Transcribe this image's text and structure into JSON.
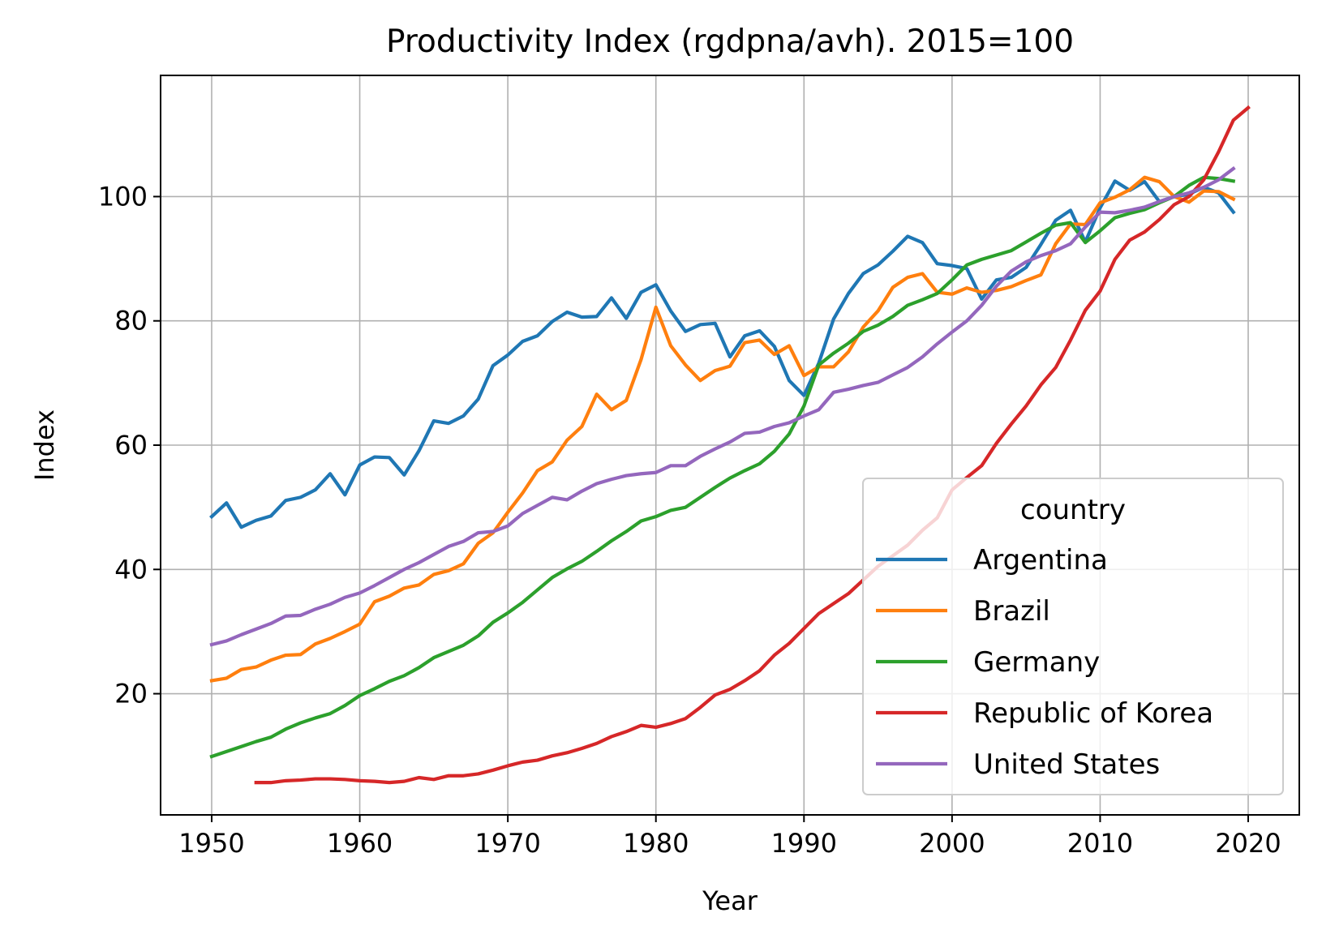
{
  "chart_data": {
    "type": "line",
    "title": "Productivity Index (rgdpna/avh). 2015=100",
    "xlabel": "Year",
    "ylabel": "Index",
    "xlim": [
      1946.55,
      2023.45
    ],
    "ylim": [
      0.5,
      119.5
    ],
    "xticks": [
      "1950",
      "1960",
      "1970",
      "1980",
      "1990",
      "2000",
      "2010",
      "2020"
    ],
    "yticks": [
      "20",
      "40",
      "60",
      "80",
      "100"
    ],
    "grid": true,
    "legend": {
      "title": "country",
      "position": "lower-right",
      "entries": [
        "Argentina",
        "Brazil",
        "Germany",
        "Republic of Korea",
        "United States"
      ]
    },
    "series": [
      {
        "name": "Argentina",
        "color": "#1f77b4",
        "x_start": 1950,
        "values": [
          48.5,
          50.7,
          46.8,
          47.9,
          48.6,
          51.1,
          51.6,
          52.8,
          55.4,
          52.0,
          56.8,
          58.1,
          58.0,
          55.2,
          59.1,
          63.9,
          63.5,
          64.7,
          67.4,
          72.8,
          74.5,
          76.7,
          77.6,
          79.9,
          81.4,
          80.6,
          80.7,
          83.7,
          80.4,
          84.6,
          85.8,
          81.6,
          78.3,
          79.4,
          79.6,
          74.2,
          77.6,
          78.4,
          75.9,
          70.4,
          68.0,
          73.2,
          80.3,
          84.4,
          87.6,
          89.0,
          91.2,
          93.6,
          92.6,
          89.2,
          88.9,
          88.4,
          83.5,
          86.6,
          87.0,
          88.6,
          92.3,
          96.2,
          97.8,
          92.7,
          98.2,
          102.5,
          101.0,
          102.4,
          99.2,
          100.0,
          100.4,
          101.5,
          100.6,
          97.5
        ]
      },
      {
        "name": "Brazil",
        "color": "#ff7f0e",
        "x_start": 1950,
        "values": [
          22.1,
          22.5,
          23.9,
          24.3,
          25.4,
          26.2,
          26.3,
          28.0,
          28.9,
          30.0,
          31.2,
          34.8,
          35.7,
          37.0,
          37.5,
          39.2,
          39.8,
          40.9,
          44.2,
          45.9,
          49.2,
          52.3,
          55.9,
          57.3,
          60.8,
          63.0,
          68.2,
          65.7,
          67.2,
          73.8,
          82.2,
          76.0,
          72.9,
          70.4,
          72.0,
          72.7,
          76.5,
          76.9,
          74.6,
          76.0,
          71.2,
          72.6,
          72.6,
          75.0,
          79.0,
          81.6,
          85.4,
          87.0,
          87.6,
          84.6,
          84.3,
          85.3,
          84.6,
          84.9,
          85.5,
          86.5,
          87.4,
          92.4,
          95.6,
          95.5,
          99.0,
          99.9,
          101.1,
          103.1,
          102.4,
          100.0,
          99.1,
          100.9,
          100.8,
          99.6
        ]
      },
      {
        "name": "Germany",
        "color": "#2ca02c",
        "x_start": 1950,
        "values": [
          9.9,
          10.7,
          11.5,
          12.3,
          13.0,
          14.3,
          15.3,
          16.1,
          16.8,
          18.1,
          19.7,
          20.8,
          22.0,
          22.9,
          24.2,
          25.8,
          26.8,
          27.8,
          29.3,
          31.5,
          33.0,
          34.7,
          36.7,
          38.7,
          40.1,
          41.3,
          42.9,
          44.6,
          46.1,
          47.8,
          48.5,
          49.5,
          50.0,
          51.6,
          53.2,
          54.7,
          55.9,
          57.0,
          59.0,
          61.8,
          66.3,
          72.9,
          74.8,
          76.4,
          78.3,
          79.3,
          80.7,
          82.5,
          83.4,
          84.4,
          86.6,
          89.0,
          89.9,
          90.6,
          91.3,
          92.7,
          94.1,
          95.4,
          95.8,
          92.6,
          94.5,
          96.6,
          97.3,
          97.9,
          99.0,
          100.0,
          101.8,
          103.1,
          102.9,
          102.5
        ]
      },
      {
        "name": "Republic of Korea",
        "color": "#d62728",
        "x_start": 1953,
        "values": [
          5.7,
          5.7,
          6.0,
          6.1,
          6.3,
          6.3,
          6.2,
          6.0,
          5.9,
          5.7,
          5.9,
          6.5,
          6.2,
          6.8,
          6.8,
          7.1,
          7.7,
          8.4,
          9.0,
          9.3,
          10.0,
          10.5,
          11.2,
          12.0,
          13.1,
          13.9,
          14.9,
          14.6,
          15.2,
          16.0,
          17.8,
          19.8,
          20.7,
          22.1,
          23.7,
          26.2,
          28.1,
          30.5,
          32.9,
          34.5,
          36.1,
          38.3,
          40.5,
          42.2,
          43.9,
          46.3,
          48.3,
          52.8,
          54.8,
          56.7,
          60.3,
          63.4,
          66.3,
          69.7,
          72.5,
          76.9,
          81.7,
          84.8,
          89.9,
          93.0,
          94.3,
          96.3,
          98.7,
          100.0,
          102.7,
          107.2,
          112.3,
          114.3
        ]
      },
      {
        "name": "United States",
        "color": "#9467bd",
        "x_start": 1950,
        "values": [
          27.9,
          28.5,
          29.5,
          30.4,
          31.3,
          32.5,
          32.6,
          33.6,
          34.4,
          35.5,
          36.2,
          37.4,
          38.7,
          40.0,
          41.1,
          42.4,
          43.7,
          44.5,
          45.9,
          46.1,
          47.0,
          49.0,
          50.3,
          51.6,
          51.2,
          52.6,
          53.8,
          54.5,
          55.1,
          55.4,
          55.6,
          56.7,
          56.7,
          58.2,
          59.4,
          60.5,
          61.9,
          62.1,
          63.0,
          63.6,
          64.7,
          65.7,
          68.5,
          69.0,
          69.6,
          70.1,
          71.3,
          72.5,
          74.2,
          76.3,
          78.2,
          80.0,
          82.5,
          85.6,
          88.0,
          89.5,
          90.5,
          91.3,
          92.4,
          95.1,
          97.5,
          97.4,
          97.8,
          98.3,
          99.2,
          100.0,
          100.6,
          101.5,
          102.7,
          104.5
        ]
      }
    ]
  }
}
